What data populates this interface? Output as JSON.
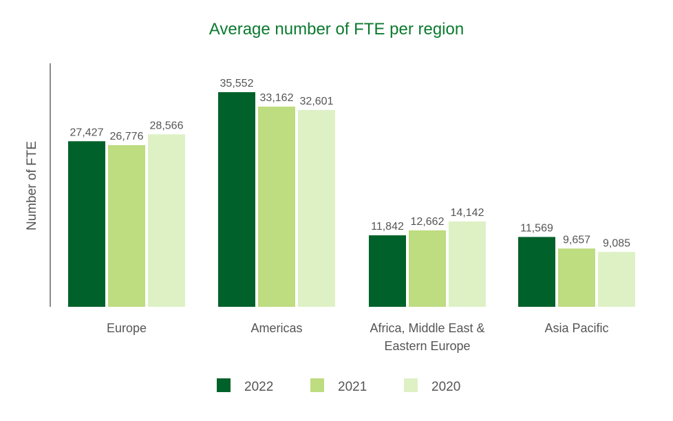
{
  "chart_data": {
    "type": "bar",
    "title": "Average number of FTE per region",
    "xlabel": "",
    "ylabel": "Number of FTE",
    "categories": [
      [
        "Europe"
      ],
      [
        "Americas"
      ],
      [
        "Africa, Middle East &",
        "Eastern Europe"
      ],
      [
        "Asia Pacific"
      ]
    ],
    "series": [
      {
        "name": "2022",
        "values": [
          27427,
          35552,
          11842,
          11569
        ],
        "labels": [
          "27,427",
          "35,552",
          "11,842",
          "11,569"
        ],
        "color": "#00612a"
      },
      {
        "name": "2021",
        "values": [
          26776,
          33162,
          12662,
          9657
        ],
        "labels": [
          "26,776",
          "33,162",
          "12,662",
          "9,657"
        ],
        "color": "#bedc80"
      },
      {
        "name": "2020",
        "values": [
          28566,
          32601,
          14142,
          9085
        ],
        "labels": [
          "28,566",
          "32,601",
          "14,142",
          "9,085"
        ],
        "color": "#ddf1c5"
      }
    ],
    "ylim": [
      0,
      40000
    ],
    "grid": false,
    "legend": "bottom-center",
    "axis_color": "#8a8a8a",
    "title_color": "#0b7a2f",
    "text_color": "#555555"
  }
}
